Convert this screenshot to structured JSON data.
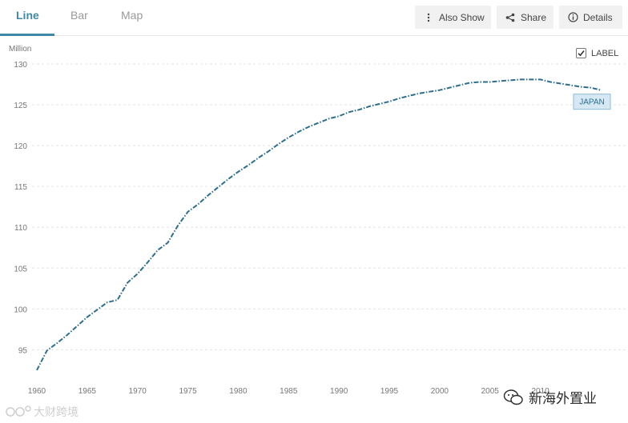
{
  "tabs": [
    {
      "label": "Line",
      "active": true
    },
    {
      "label": "Bar",
      "active": false
    },
    {
      "label": "Map",
      "active": false
    }
  ],
  "toolbar": {
    "also_show_label": "Also Show",
    "share_label": "Share",
    "details_label": "Details",
    "icons": {
      "also_show": "vertical-ellipsis-icon",
      "share": "share-icon",
      "details": "info-icon"
    }
  },
  "label_toggle": {
    "label": "LABEL",
    "checked": true
  },
  "watermarks": {
    "left_text": "大财跨境",
    "right_text": "新海外置业"
  },
  "colors": {
    "accent": "#3f88a8",
    "line": "#2d6e8e",
    "label_bg": "#d5e8f3",
    "label_border": "#8fbcd6",
    "grid": "#e3e3e3"
  },
  "chart_data": {
    "type": "line",
    "ylabel": "Million",
    "ylim": [
      92,
      130
    ],
    "y_ticks": [
      95,
      100,
      105,
      110,
      115,
      120,
      125,
      130
    ],
    "xlim": [
      1960,
      2016
    ],
    "x_ticks": [
      1960,
      1965,
      1970,
      1975,
      1980,
      1985,
      1990,
      1995,
      2000,
      2005,
      2010
    ],
    "grid": true,
    "line_style": "dash-dot",
    "series": [
      {
        "name": "JAPAN",
        "x": [
          1960,
          1961,
          1962,
          1963,
          1964,
          1965,
          1966,
          1967,
          1968,
          1969,
          1970,
          1971,
          1972,
          1973,
          1974,
          1975,
          1976,
          1977,
          1978,
          1979,
          1980,
          1981,
          1982,
          1983,
          1984,
          1985,
          1986,
          1987,
          1988,
          1989,
          1990,
          1991,
          1992,
          1993,
          1994,
          1995,
          1996,
          1997,
          1998,
          1999,
          2000,
          2001,
          2002,
          2003,
          2004,
          2005,
          2006,
          2007,
          2008,
          2009,
          2010,
          2011,
          2012,
          2013,
          2014,
          2015,
          2016
        ],
        "values": [
          92.5,
          94.9,
          95.8,
          96.8,
          97.9,
          99.0,
          99.9,
          100.8,
          101.1,
          103.2,
          104.3,
          105.7,
          107.2,
          108.1,
          110.2,
          111.9,
          112.8,
          113.9,
          114.9,
          115.9,
          116.8,
          117.6,
          118.5,
          119.3,
          120.2,
          121.0,
          121.7,
          122.3,
          122.8,
          123.3,
          123.6,
          124.1,
          124.4,
          124.8,
          125.1,
          125.4,
          125.8,
          126.1,
          126.4,
          126.6,
          126.8,
          127.1,
          127.4,
          127.7,
          127.8,
          127.8,
          127.9,
          128.0,
          128.1,
          128.1,
          128.1,
          127.8,
          127.6,
          127.4,
          127.2,
          127.1,
          126.8
        ]
      }
    ],
    "series_label": "JAPAN"
  }
}
